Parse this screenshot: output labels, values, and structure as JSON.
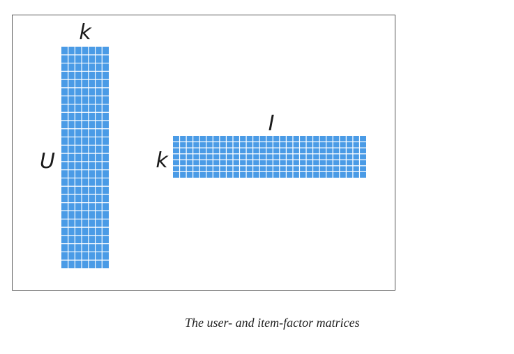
{
  "diagram": {
    "user_matrix": {
      "row_label": "U",
      "col_label": "k",
      "rows": 27,
      "cols": 7
    },
    "item_matrix": {
      "row_label": "k",
      "col_label": "I",
      "rows": 7,
      "cols": 29
    },
    "cell_color": "#4a9be6",
    "grid_line_color": "#ffffff"
  },
  "caption": "The user- and item-factor matrices"
}
